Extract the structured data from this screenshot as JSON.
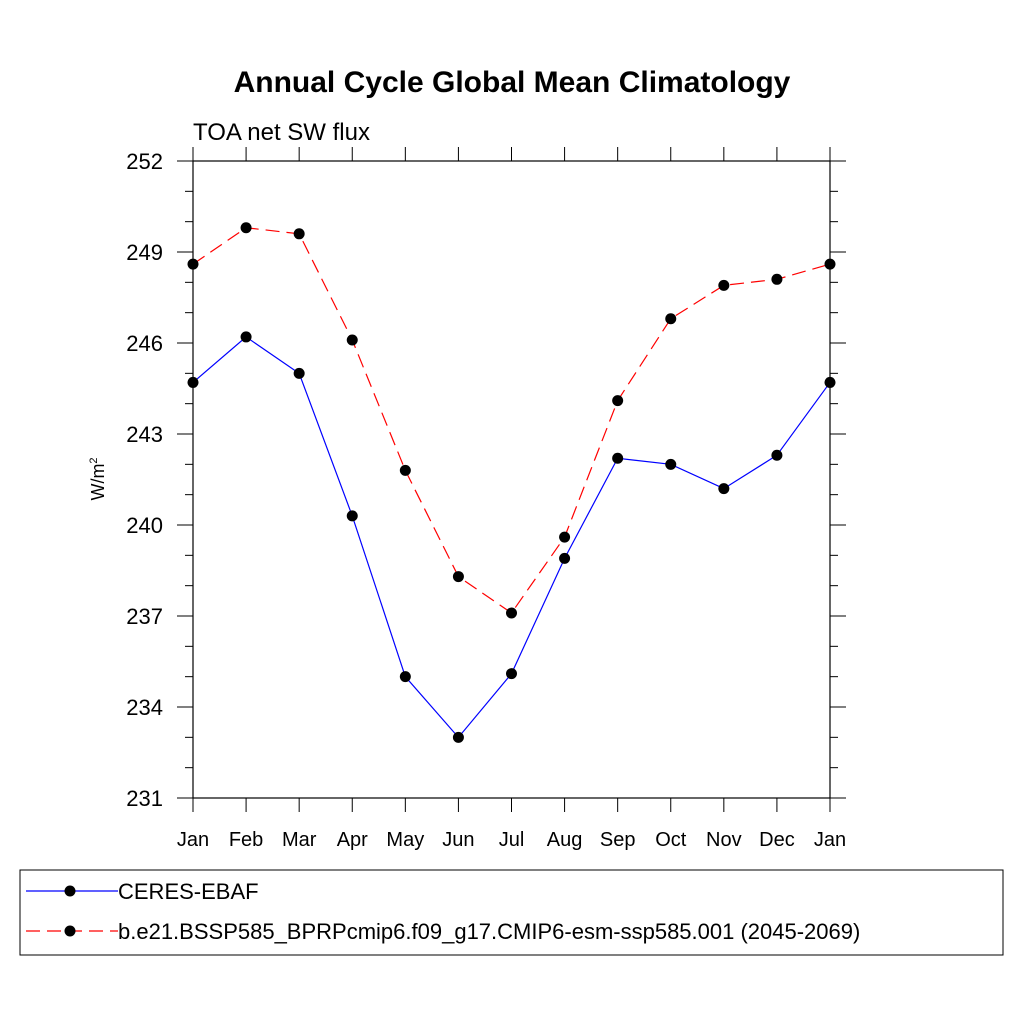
{
  "chart_data": {
    "type": "line",
    "title": "Annual Cycle Global Mean Climatology",
    "subtitle": "TOA net SW flux",
    "ylabel": "W/m",
    "ylabel_sup": "2",
    "xlabel": "",
    "categories": [
      "Jan",
      "Feb",
      "Mar",
      "Apr",
      "May",
      "Jun",
      "Jul",
      "Aug",
      "Sep",
      "Oct",
      "Nov",
      "Dec",
      "Jan"
    ],
    "ylim": [
      231,
      252
    ],
    "yticks": [
      "231",
      "234",
      "237",
      "240",
      "243",
      "246",
      "249",
      "252"
    ],
    "series": [
      {
        "name": "CERES-EBAF",
        "color": "#0000ff",
        "dash": "solid",
        "values": [
          244.7,
          246.2,
          245.0,
          240.3,
          235.0,
          233.0,
          235.1,
          238.9,
          242.2,
          242.0,
          241.2,
          242.3,
          244.7
        ]
      },
      {
        "name": "b.e21.BSSP585_BPRPcmip6.f09_g17.CMIP6-esm-ssp585.001 (2045-2069)",
        "color": "#ff0000",
        "dash": "dashed",
        "values": [
          248.6,
          249.8,
          249.6,
          246.1,
          241.8,
          238.3,
          237.1,
          239.6,
          244.1,
          246.8,
          247.9,
          248.1,
          248.6
        ]
      }
    ],
    "grid": false,
    "legend_position": "bottom"
  }
}
